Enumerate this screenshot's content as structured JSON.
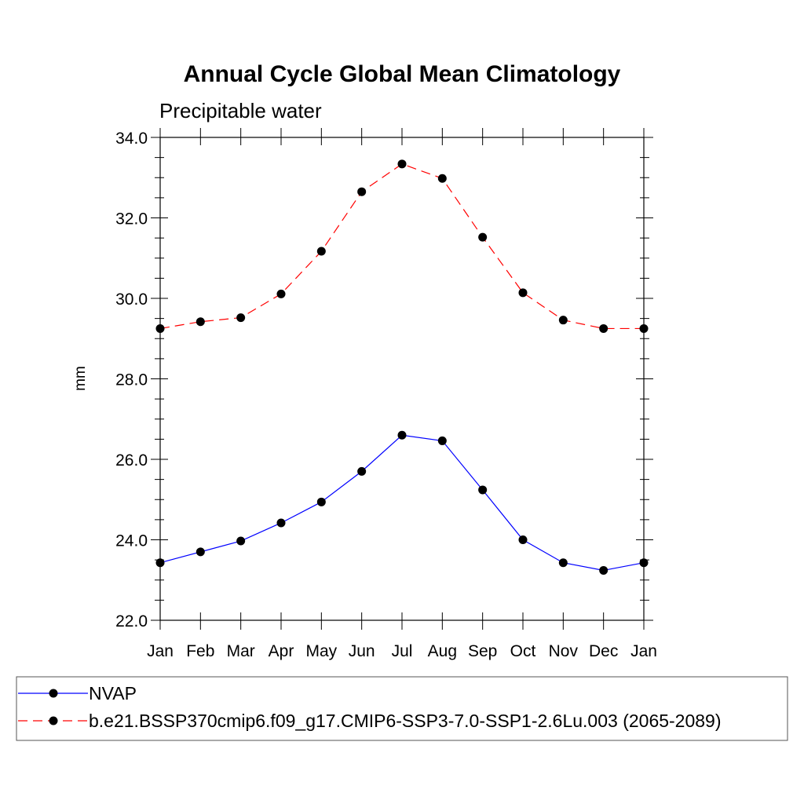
{
  "chart_data": {
    "type": "line",
    "title": "Annual Cycle Global Mean Climatology",
    "subtitle": "Precipitable water",
    "ylabel": "mm",
    "xlabel": "",
    "categories": [
      "Jan",
      "Feb",
      "Mar",
      "Apr",
      "May",
      "Jun",
      "Jul",
      "Aug",
      "Sep",
      "Oct",
      "Nov",
      "Dec",
      "Jan"
    ],
    "ylim": [
      22.0,
      34.0
    ],
    "yticks": [
      "22.0",
      "24.0",
      "26.0",
      "28.0",
      "30.0",
      "32.0",
      "34.0"
    ],
    "grid": false,
    "legend_position": "bottom",
    "series": [
      {
        "name": "NVAP",
        "color": "#0000ff",
        "line_style": "solid",
        "marker": "filled-circle",
        "values": [
          23.43,
          23.7,
          23.97,
          24.42,
          24.94,
          25.7,
          26.6,
          26.46,
          25.24,
          24.0,
          23.43,
          23.24,
          23.43
        ]
      },
      {
        "name": "b.e21.BSSP370cmip6.f09_g17.CMIP6-SSP3-7.0-SSP1-2.6Lu.003 (2065-2089)",
        "color": "#ff0000",
        "line_style": "dashed",
        "marker": "filled-circle",
        "values": [
          29.25,
          29.42,
          29.52,
          30.11,
          31.17,
          32.65,
          33.34,
          32.98,
          31.52,
          30.14,
          29.46,
          29.25,
          29.25
        ]
      }
    ]
  }
}
